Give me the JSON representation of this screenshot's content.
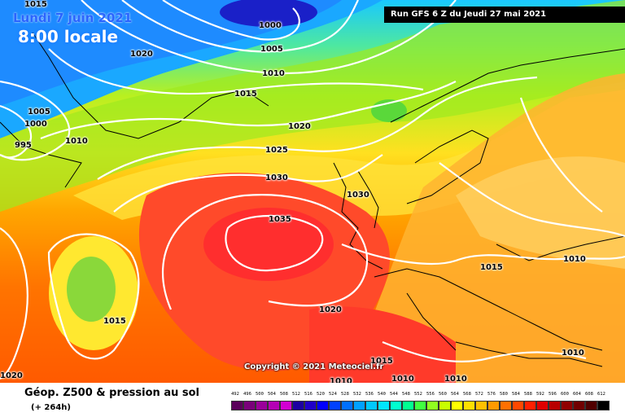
{
  "header": {
    "date": "Lundi 7 juin 2021",
    "time": "8:00 locale",
    "run": "Run GFS 6 Z du Jeudi 27 mai 2021"
  },
  "copyright": "Copyright © 2021 Meteociel.fr",
  "footer": {
    "title": "Géop. Z500 & pression au sol",
    "subtitle": "(+ 264h)"
  },
  "isobars": {
    "labels": [
      "1015",
      "1000",
      "1005",
      "1020",
      "1010",
      "1015",
      "1005",
      "1000",
      "995",
      "1010",
      "1020",
      "1025",
      "1030",
      "1030",
      "1035",
      "1015",
      "1015",
      "1010",
      "1010",
      "1020",
      "1015",
      "1010",
      "1010",
      "1010",
      "1020"
    ]
  },
  "legend": {
    "values": [
      "492",
      "496",
      "500",
      "504",
      "508",
      "512",
      "516",
      "520",
      "524",
      "528",
      "532",
      "536",
      "540",
      "544",
      "548",
      "552",
      "556",
      "560",
      "564",
      "568",
      "572",
      "576",
      "580",
      "584",
      "588",
      "592",
      "596",
      "600",
      "604",
      "608",
      "612"
    ],
    "colors": [
      "#5a005a",
      "#7a007a",
      "#9a009a",
      "#b400b4",
      "#d200d2",
      "#1c00a0",
      "#2000c8",
      "#0000ff",
      "#0040ff",
      "#0070ff",
      "#00a0ff",
      "#00c8ff",
      "#00e6ff",
      "#00ffd0",
      "#00ff90",
      "#40ff40",
      "#90ff20",
      "#c8ff00",
      "#ffff00",
      "#ffe000",
      "#ffc000",
      "#ff9a00",
      "#ff7000",
      "#ff4800",
      "#ff2000",
      "#e00000",
      "#b80000",
      "#900000",
      "#700000",
      "#500000",
      "#000000"
    ]
  },
  "colors": {
    "ocean_high": "#ff3c2a",
    "land_mid": "#ffb400",
    "north_cold": "#2aa8ff",
    "isobar": "#ffffff",
    "coast": "#000000"
  }
}
